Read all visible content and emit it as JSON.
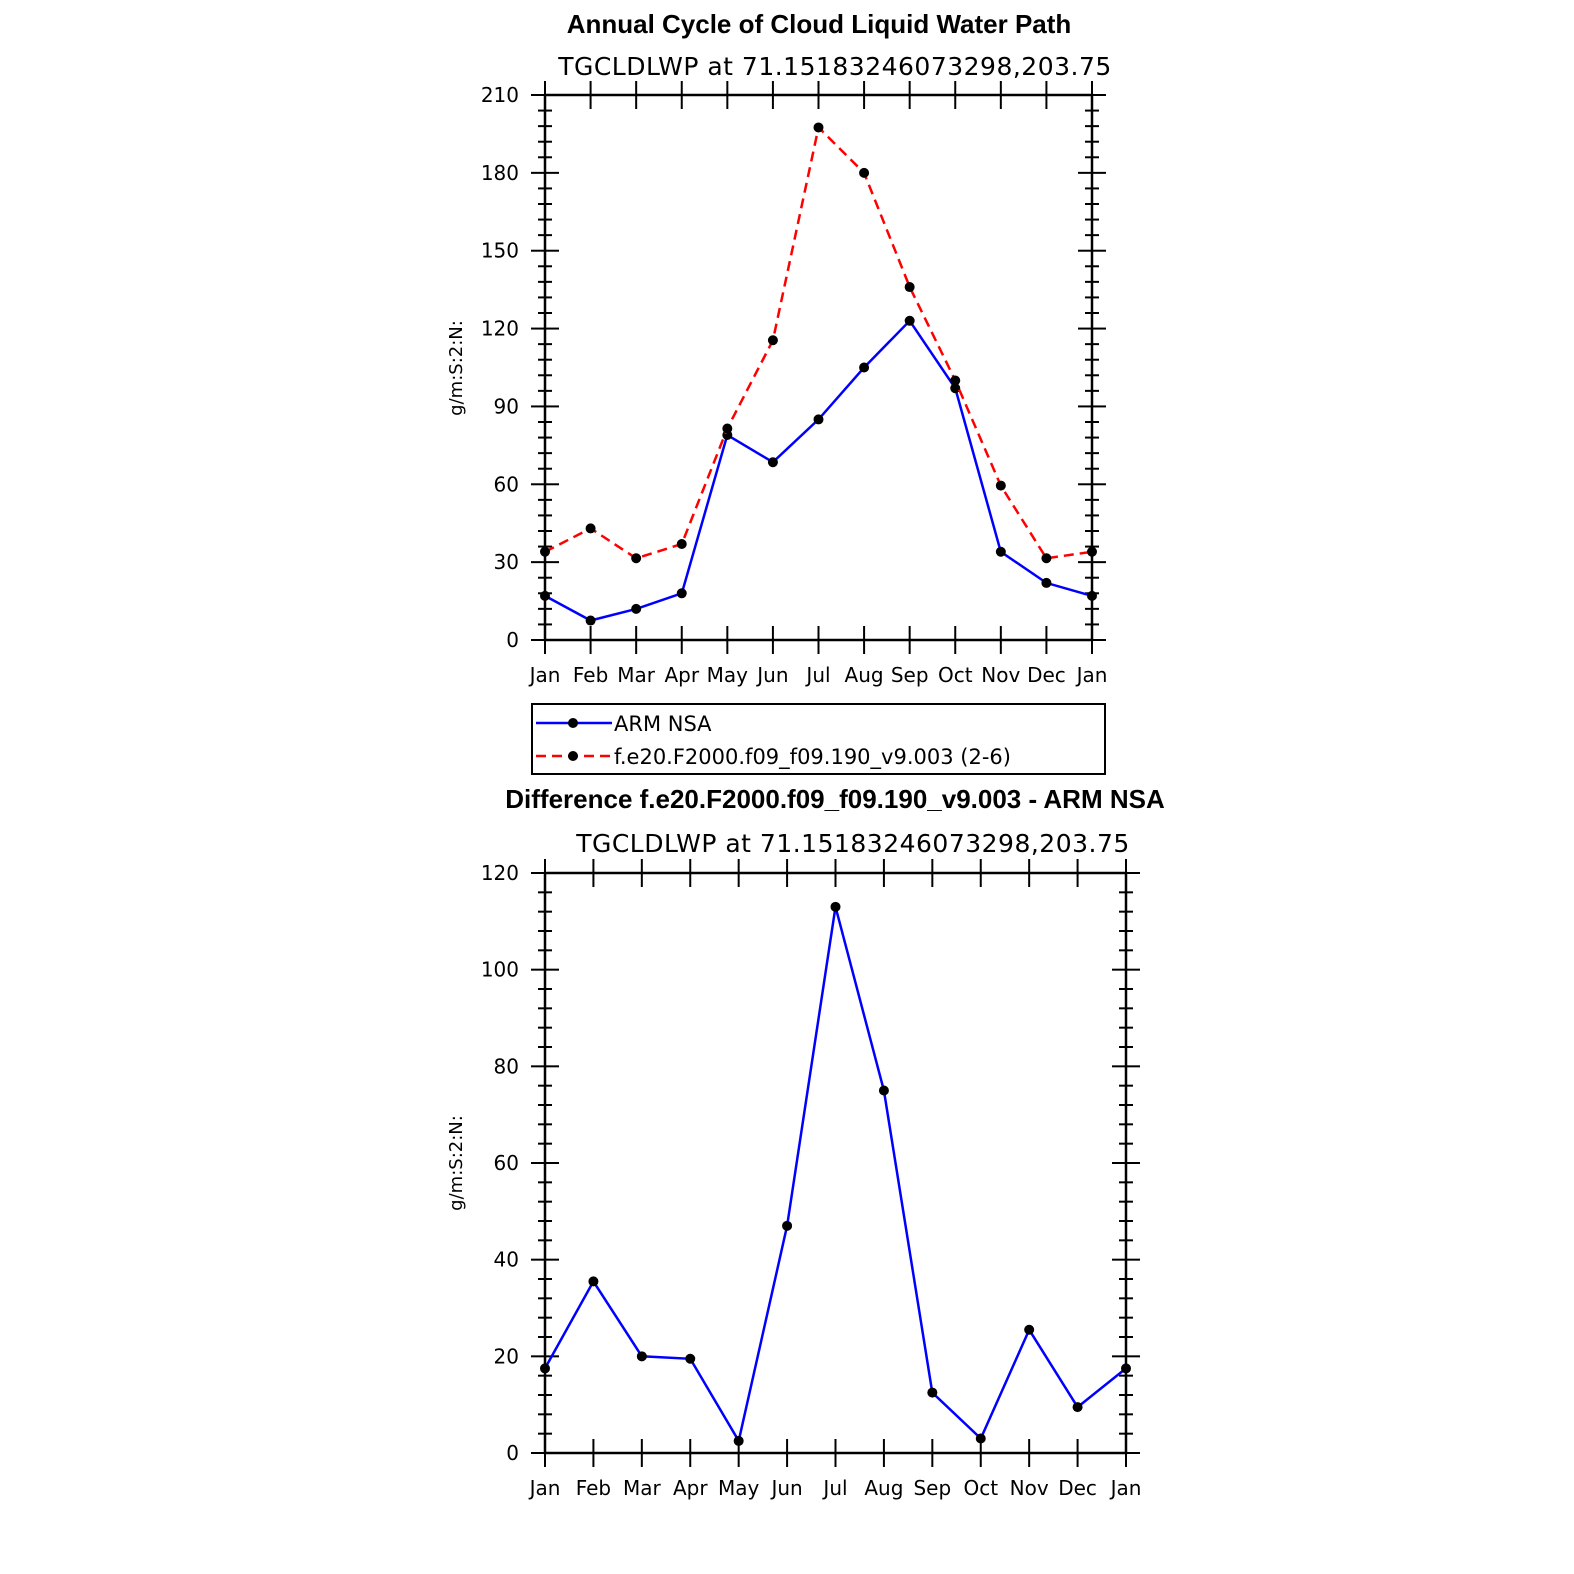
{
  "chart_data": [
    {
      "type": "line",
      "title": "Annual Cycle of Cloud Liquid Water Path",
      "subtitle": "TGCLDLWP at 71.15183246073298,203.75",
      "ylabel": "g/m:S:2:N:",
      "xlabel": "",
      "ylim": [
        0,
        210
      ],
      "yticks": [
        0,
        30,
        60,
        90,
        120,
        150,
        180,
        210
      ],
      "categories": [
        "Jan",
        "Feb",
        "Mar",
        "Apr",
        "May",
        "Jun",
        "Jul",
        "Aug",
        "Sep",
        "Oct",
        "Nov",
        "Dec",
        "Jan"
      ],
      "series": [
        {
          "name": "ARM NSA",
          "color": "#0000ff",
          "dash": "solid",
          "values": [
            17,
            7.5,
            12,
            18,
            79,
            68.5,
            85,
            105,
            123,
            97,
            34,
            22,
            17
          ]
        },
        {
          "name": "f.e20.F2000.f09_f09.190_v9.003 (2-6)",
          "color": "#ff0000",
          "dash": "dashed",
          "values": [
            34,
            43,
            31.5,
            37,
            81.5,
            115.5,
            197.5,
            180,
            136,
            100,
            59.5,
            31.5,
            34
          ]
        }
      ],
      "legend": {
        "position": "below"
      }
    },
    {
      "type": "line",
      "title": "Difference f.e20.F2000.f09_f09.190_v9.003 - ARM NSA",
      "subtitle": "TGCLDLWP at 71.15183246073298,203.75",
      "ylabel": "g/m:S:2:N:",
      "xlabel": "",
      "ylim": [
        0,
        120
      ],
      "yticks": [
        0,
        20,
        40,
        60,
        80,
        100,
        120
      ],
      "categories": [
        "Jan",
        "Feb",
        "Mar",
        "Apr",
        "May",
        "Jun",
        "Jul",
        "Aug",
        "Sep",
        "Oct",
        "Nov",
        "Dec",
        "Jan"
      ],
      "series": [
        {
          "name": "Difference",
          "color": "#0000ff",
          "dash": "solid",
          "values": [
            17.5,
            35.5,
            20,
            19.5,
            2.5,
            47,
            113,
            75,
            12.5,
            3,
            25.5,
            9.5,
            17.5
          ]
        }
      ]
    }
  ]
}
